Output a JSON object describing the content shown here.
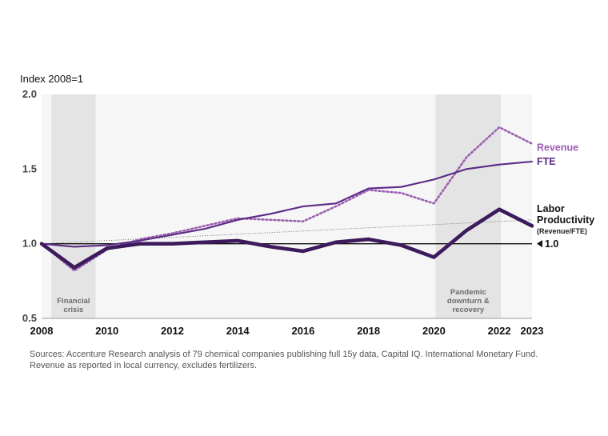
{
  "chart_data": {
    "type": "line",
    "ylabel": "Index 2008=1",
    "x": [
      2008,
      2009,
      2010,
      2011,
      2012,
      2013,
      2014,
      2015,
      2016,
      2017,
      2018,
      2019,
      2020,
      2021,
      2022,
      2023
    ],
    "ylim": [
      0.5,
      2.0
    ],
    "y_ticks": [
      "2.0",
      "1.5",
      "1.0",
      "0.5"
    ],
    "x_ticks": [
      "2008",
      "2010",
      "2012",
      "2014",
      "2016",
      "2018",
      "2020",
      "2022",
      "2023"
    ],
    "series": [
      {
        "name": "Revenue",
        "style": "dotted",
        "color": "#9b5fb0",
        "values": [
          1.0,
          0.82,
          0.96,
          1.03,
          1.07,
          1.12,
          1.17,
          1.16,
          1.15,
          1.25,
          1.36,
          1.34,
          1.27,
          1.58,
          1.78,
          1.67
        ]
      },
      {
        "name": "FTE",
        "style": "solid",
        "color": "#5b2a86",
        "values": [
          1.0,
          0.98,
          0.99,
          1.02,
          1.06,
          1.1,
          1.16,
          1.2,
          1.25,
          1.27,
          1.37,
          1.38,
          1.43,
          1.5,
          1.53,
          1.55
        ]
      },
      {
        "name": "Labor Productivity",
        "sublabel": "(Revenue/FTE)",
        "style": "thick",
        "color": "#3c1a5c",
        "values": [
          1.0,
          0.84,
          0.97,
          1.0,
          1.0,
          1.01,
          1.02,
          0.98,
          0.95,
          1.01,
          1.03,
          0.99,
          0.91,
          1.09,
          1.23,
          1.12
        ]
      }
    ],
    "trend": {
      "from": 1.0,
      "to": 1.16
    },
    "reference_line": {
      "value": 1.0,
      "label": "1.0"
    },
    "shaded_regions": [
      {
        "start": 2008.3,
        "end": 2009.65,
        "label_lines": [
          "Financial",
          "crisis"
        ]
      },
      {
        "start": 2020.05,
        "end": 2022.05,
        "label_lines": [
          "Pandemic",
          "downturn &",
          "recovery"
        ]
      }
    ],
    "sources": "Sources: Accenture Research analysis of 79 chemical companies publishing full 15y data, Capital IQ. International Monetary Fund. Revenue as reported in local currency, excludes fertilizers."
  }
}
